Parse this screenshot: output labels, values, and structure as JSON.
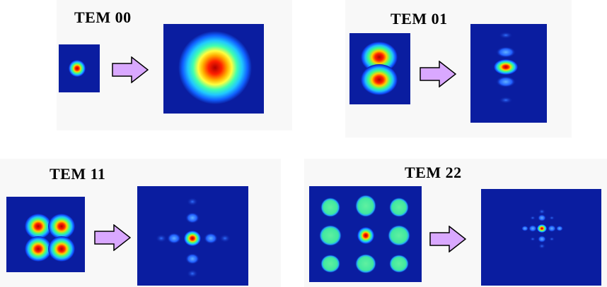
{
  "modes": [
    {
      "id": "tem00",
      "label": "TEM 00"
    },
    {
      "id": "tem01",
      "label": "TEM 01"
    },
    {
      "id": "tem11",
      "label": "TEM 11"
    },
    {
      "id": "tem22",
      "label": "TEM 22"
    }
  ],
  "colors": {
    "background_blue": "#0a1da0",
    "dark_blue": "#0008a8",
    "arrow_fill": "#d9a8ff",
    "arrow_stroke": "#000000",
    "red": "#e00000",
    "yellow": "#ffe000",
    "cyan": "#40e0e0",
    "green": "#50e890"
  }
}
